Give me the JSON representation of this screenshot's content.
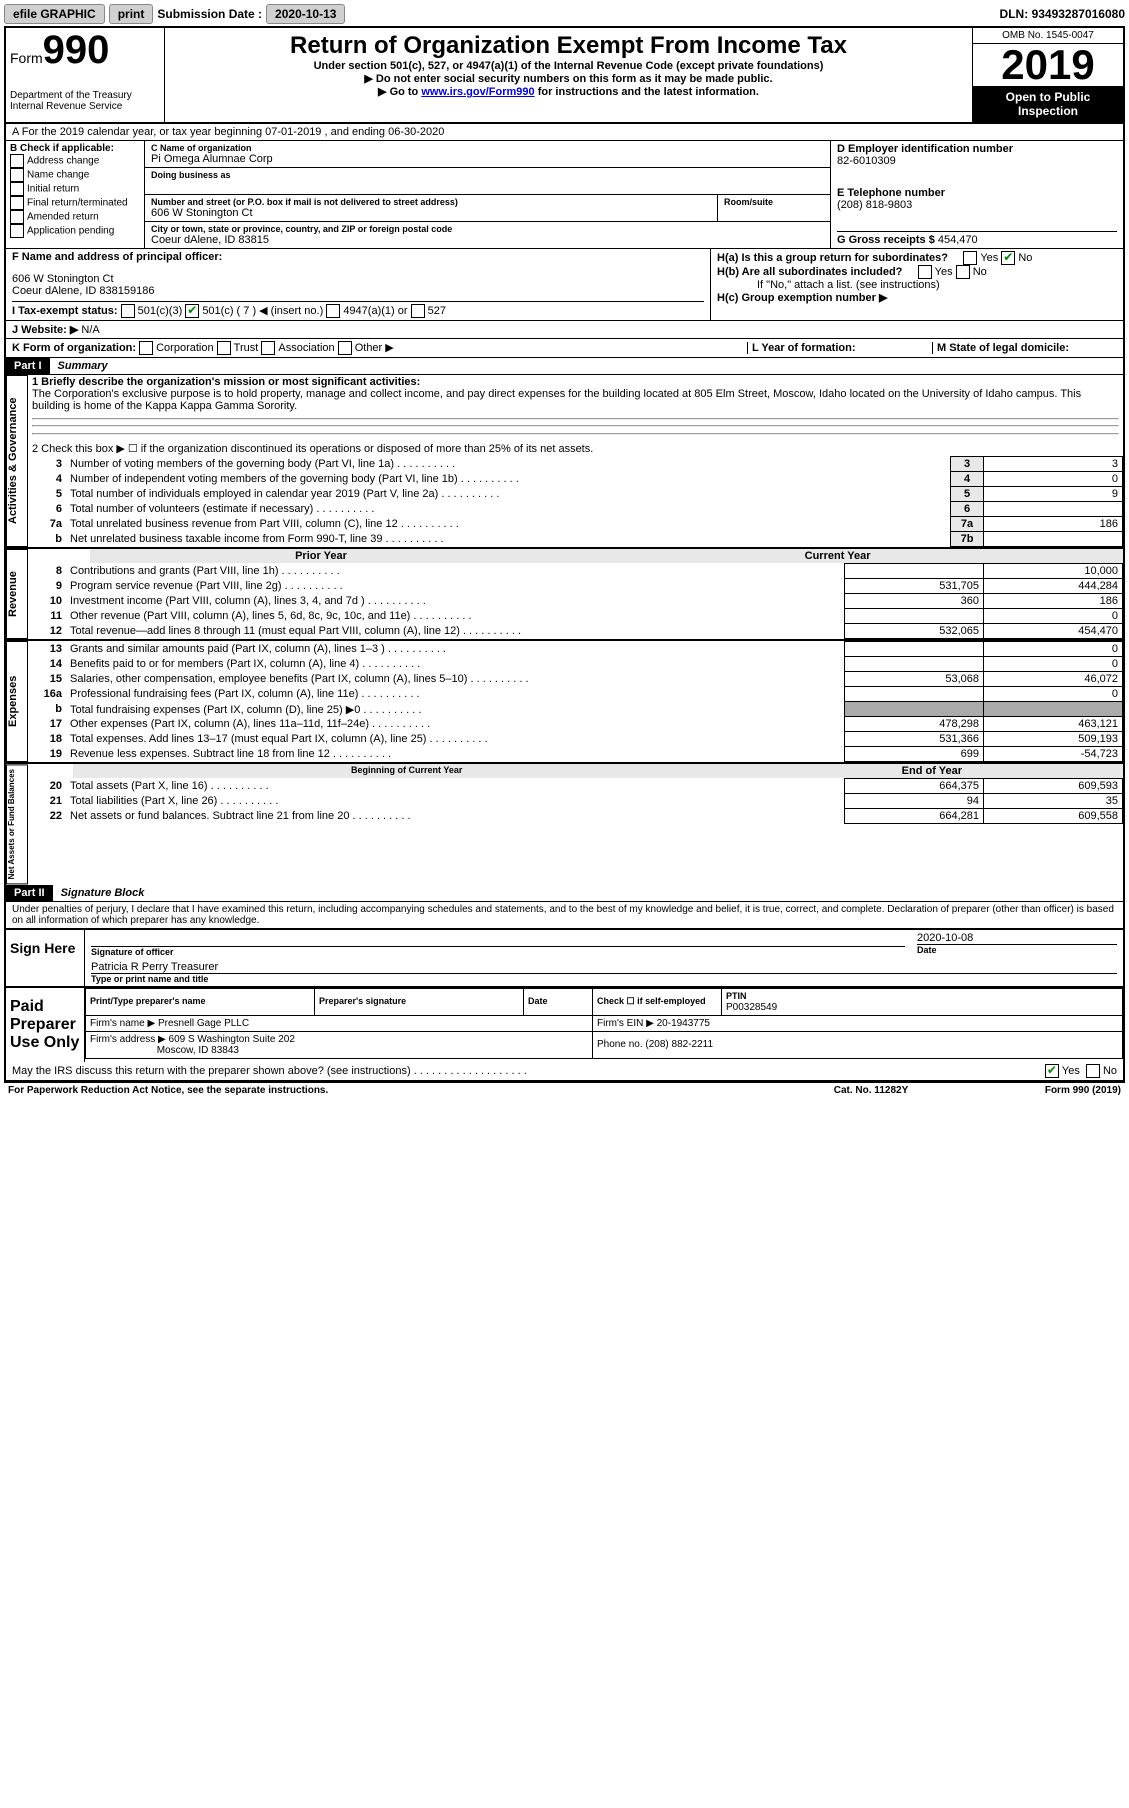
{
  "topbar": {
    "efile": "efile GRAPHIC",
    "print": "print",
    "sub_label": "Submission Date :",
    "sub_date": "2020-10-13",
    "dln_label": "DLN:",
    "dln": "93493287016080"
  },
  "header": {
    "form_label": "Form",
    "form_num": "990",
    "dept": "Department of the Treasury Internal Revenue Service",
    "title": "Return of Organization Exempt From Income Tax",
    "sub1": "Under section 501(c), 527, or 4947(a)(1) of the Internal Revenue Code (except private foundations)",
    "sub2": "▶ Do not enter social security numbers on this form as it may be made public.",
    "sub3_pre": "▶ Go to ",
    "sub3_link": "www.irs.gov/Form990",
    "sub3_post": " for instructions and the latest information.",
    "omb": "OMB No. 1545-0047",
    "year": "2019",
    "inspect": "Open to Public Inspection"
  },
  "rowA": "A For the 2019 calendar year, or tax year beginning 07-01-2019   , and ending 06-30-2020",
  "boxB": {
    "label": "B Check if applicable:",
    "opts": [
      "Address change",
      "Name change",
      "Initial return",
      "Final return/terminated",
      "Amended return",
      "Application pending"
    ]
  },
  "boxC": {
    "name_label": "C Name of organization",
    "name": "Pi Omega Alumnae Corp",
    "dba_label": "Doing business as",
    "addr_label": "Number and street (or P.O. box if mail is not delivered to street address)",
    "room_label": "Room/suite",
    "addr": "606 W Stonington Ct",
    "city_label": "City or town, state or province, country, and ZIP or foreign postal code",
    "city": "Coeur dAlene, ID  83815"
  },
  "boxD": {
    "label": "D Employer identification number",
    "ein": "82-6010309"
  },
  "boxE": {
    "label": "E Telephone number",
    "phone": "(208) 818-9803"
  },
  "boxG": {
    "label": "G Gross receipts $",
    "amount": "454,470"
  },
  "boxF": {
    "label": "F  Name and address of principal officer:",
    "addr1": "606 W Stonington Ct",
    "addr2": "Coeur dAlene, ID  838159186"
  },
  "boxH": {
    "ha": "H(a)  Is this a group return for subordinates?",
    "hb": "H(b)  Are all subordinates included?",
    "hb_note": "If \"No,\" attach a list. (see instructions)",
    "hc": "H(c)  Group exemption number ▶"
  },
  "rowI": {
    "label": "I  Tax-exempt status:",
    "o1": "501(c)(3)",
    "o2": "501(c) ( 7 ) ◀ (insert no.)",
    "o3": "4947(a)(1) or",
    "o4": "527"
  },
  "rowJ": {
    "label": "J  Website: ▶",
    "val": "N/A"
  },
  "rowK": "K Form of organization:",
  "rowK_opts": [
    "Corporation",
    "Trust",
    "Association",
    "Other ▶"
  ],
  "rowL": "L Year of formation:",
  "rowM": "M State of legal domicile:",
  "part1": {
    "hdr": "Part I",
    "title": "Summary"
  },
  "summary": {
    "l1": "1  Briefly describe the organization's mission or most significant activities:",
    "l1_text": "The Corporation's exclusive purpose is to hold property, manage and collect income, and pay direct expenses for the building located at 805 Elm Street, Moscow, Idaho located on the University of Idaho campus. This building is home of the Kappa Kappa Gamma Sorority.",
    "l2": "2  Check this box ▶ ☐  if the organization discontinued its operations or disposed of more than 25% of its net assets.",
    "rows_top": [
      {
        "n": "3",
        "t": "Number of voting members of the governing body (Part VI, line 1a)",
        "box": "3",
        "val": "3"
      },
      {
        "n": "4",
        "t": "Number of independent voting members of the governing body (Part VI, line 1b)",
        "box": "4",
        "val": "0"
      },
      {
        "n": "5",
        "t": "Total number of individuals employed in calendar year 2019 (Part V, line 2a)",
        "box": "5",
        "val": "9"
      },
      {
        "n": "6",
        "t": "Total number of volunteers (estimate if necessary)",
        "box": "6",
        "val": ""
      },
      {
        "n": "7a",
        "t": "Total unrelated business revenue from Part VIII, column (C), line 12",
        "box": "7a",
        "val": "186"
      },
      {
        "n": "b",
        "t": "Net unrelated business taxable income from Form 990-T, line 39",
        "box": "7b",
        "val": ""
      }
    ],
    "prior_hdr": "Prior Year",
    "curr_hdr": "Current Year",
    "revenue": [
      {
        "n": "8",
        "t": "Contributions and grants (Part VIII, line 1h)",
        "p": "",
        "c": "10,000"
      },
      {
        "n": "9",
        "t": "Program service revenue (Part VIII, line 2g)",
        "p": "531,705",
        "c": "444,284"
      },
      {
        "n": "10",
        "t": "Investment income (Part VIII, column (A), lines 3, 4, and 7d )",
        "p": "360",
        "c": "186"
      },
      {
        "n": "11",
        "t": "Other revenue (Part VIII, column (A), lines 5, 6d, 8c, 9c, 10c, and 11e)",
        "p": "",
        "c": "0"
      },
      {
        "n": "12",
        "t": "Total revenue—add lines 8 through 11 (must equal Part VIII, column (A), line 12)",
        "p": "532,065",
        "c": "454,470"
      }
    ],
    "expenses": [
      {
        "n": "13",
        "t": "Grants and similar amounts paid (Part IX, column (A), lines 1–3 )",
        "p": "",
        "c": "0"
      },
      {
        "n": "14",
        "t": "Benefits paid to or for members (Part IX, column (A), line 4)",
        "p": "",
        "c": "0"
      },
      {
        "n": "15",
        "t": "Salaries, other compensation, employee benefits (Part IX, column (A), lines 5–10)",
        "p": "53,068",
        "c": "46,072"
      },
      {
        "n": "16a",
        "t": "Professional fundraising fees (Part IX, column (A), line 11e)",
        "p": "",
        "c": "0"
      },
      {
        "n": "b",
        "t": "Total fundraising expenses (Part IX, column (D), line 25) ▶0",
        "p": "GREY",
        "c": "GREY"
      },
      {
        "n": "17",
        "t": "Other expenses (Part IX, column (A), lines 11a–11d, 11f–24e)",
        "p": "478,298",
        "c": "463,121"
      },
      {
        "n": "18",
        "t": "Total expenses. Add lines 13–17 (must equal Part IX, column (A), line 25)",
        "p": "531,366",
        "c": "509,193"
      },
      {
        "n": "19",
        "t": "Revenue less expenses. Subtract line 18 from line 12",
        "p": "699",
        "c": "-54,723"
      }
    ],
    "boy_hdr": "Beginning of Current Year",
    "eoy_hdr": "End of Year",
    "netassets": [
      {
        "n": "20",
        "t": "Total assets (Part X, line 16)",
        "p": "664,375",
        "c": "609,593"
      },
      {
        "n": "21",
        "t": "Total liabilities (Part X, line 26)",
        "p": "94",
        "c": "35"
      },
      {
        "n": "22",
        "t": "Net assets or fund balances. Subtract line 21 from line 20",
        "p": "664,281",
        "c": "609,558"
      }
    ]
  },
  "sidelabels": {
    "ag": "Activities & Governance",
    "rev": "Revenue",
    "exp": "Expenses",
    "na": "Net Assets or Fund Balances"
  },
  "part2": {
    "hdr": "Part II",
    "title": "Signature Block"
  },
  "penalties": "Under penalties of perjury, I declare that I have examined this return, including accompanying schedules and statements, and to the best of my knowledge and belief, it is true, correct, and complete. Declaration of preparer (other than officer) is based on all information of which preparer has any knowledge.",
  "sign": {
    "here": "Sign Here",
    "sig_label": "Signature of officer",
    "date_label": "Date",
    "date": "2020-10-08",
    "name": "Patricia R Perry Treasurer",
    "name_label": "Type or print name and title"
  },
  "preparer": {
    "label": "Paid Preparer Use Only",
    "print_label": "Print/Type preparer's name",
    "sig_label": "Preparer's signature",
    "date_label": "Date",
    "check_label": "Check ☐ if self-employed",
    "ptin_label": "PTIN",
    "ptin": "P00328549",
    "firm_name_label": "Firm's name    ▶",
    "firm_name": "Presnell Gage PLLC",
    "firm_ein_label": "Firm's EIN ▶",
    "firm_ein": "20-1943775",
    "firm_addr_label": "Firm's address ▶",
    "firm_addr1": "609 S Washington Suite 202",
    "firm_addr2": "Moscow, ID  83843",
    "phone_label": "Phone no.",
    "phone": "(208) 882-2211"
  },
  "discuss": "May the IRS discuss this return with the preparer shown above? (see instructions)",
  "footer": {
    "left": "For Paperwork Reduction Act Notice, see the separate instructions.",
    "mid": "Cat. No. 11282Y",
    "right": "Form 990 (2019)"
  }
}
